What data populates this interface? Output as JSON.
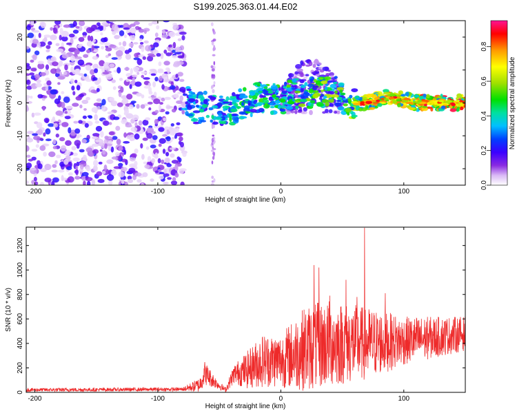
{
  "title": "S199.2025.363.01.44.E02",
  "chart_data": [
    {
      "type": "heatmap",
      "xlabel": "Height of straight line (km)",
      "ylabel": "Frequency (Hz)",
      "xlim": [
        -207,
        150
      ],
      "ylim": [
        -25,
        25
      ],
      "xticks": [
        -200,
        -100,
        0,
        100
      ],
      "yticks": [
        -20,
        -10,
        0,
        10,
        20
      ],
      "colorbar": {
        "label": "Normalized spectral amplitude",
        "range": [
          0,
          0.95
        ],
        "ticks": [
          0.0,
          0.2,
          0.4,
          0.6,
          0.8
        ],
        "tick_labels": [
          "0.0",
          "0.2",
          "0.4",
          "0.6",
          "0.8"
        ],
        "colormap": [
          "#ffffff",
          "#d9b8f5",
          "#8a2be2",
          "#4000ff",
          "#0000ff",
          "#00bfff",
          "#00e5c0",
          "#00e000",
          "#90e000",
          "#ffff00",
          "#ffa500",
          "#ff0000",
          "#ff1493"
        ]
      },
      "regions": [
        {
          "name": "noise",
          "x": [
            -207,
            -78
          ],
          "freq": [
            -25,
            25
          ],
          "level": 0.12
        },
        {
          "name": "gap-streak",
          "x": [
            -56,
            -54
          ],
          "freq": [
            -25,
            25
          ],
          "level": 0.05
        },
        {
          "name": "signal-band",
          "ridge": [
            [
              -78,
              2
            ],
            [
              -70,
              -2
            ],
            [
              -60,
              -1
            ],
            [
              -45,
              -3
            ],
            [
              -30,
              0
            ],
            [
              -15,
              2
            ],
            [
              0,
              1
            ],
            [
              10,
              3
            ],
            [
              30,
              3
            ],
            [
              45,
              4
            ],
            [
              55,
              0
            ],
            [
              70,
              0
            ],
            [
              90,
              2
            ],
            [
              110,
              0
            ],
            [
              150,
              0
            ]
          ],
          "level": 0.45
        },
        {
          "name": "hump",
          "x": [
            0,
            50
          ],
          "freq": [
            -3,
            14
          ],
          "level": 0.2
        }
      ]
    },
    {
      "type": "line",
      "xlabel": "Height of straight line (km)",
      "ylabel": "SNR (10 * v/v)",
      "xlim": [
        -207,
        150
      ],
      "ylim": [
        0,
        1350
      ],
      "xticks": [
        -200,
        -100,
        0,
        100
      ],
      "yticks": [
        0,
        200,
        400,
        600,
        800,
        1000,
        1200
      ],
      "color": "#ee2a2a",
      "envelope": [
        {
          "x": -207,
          "mean": 20,
          "amp": 15
        },
        {
          "x": -80,
          "mean": 25,
          "amp": 15
        },
        {
          "x": -66,
          "mean": 60,
          "amp": 60
        },
        {
          "x": -62,
          "mean": 160,
          "amp": 100
        },
        {
          "x": -52,
          "mean": 70,
          "amp": 40
        },
        {
          "x": -45,
          "mean": 20,
          "amp": 20
        },
        {
          "x": -38,
          "mean": 150,
          "amp": 80
        },
        {
          "x": -28,
          "mean": 180,
          "amp": 150
        },
        {
          "x": -15,
          "mean": 260,
          "amp": 220
        },
        {
          "x": 0,
          "mean": 260,
          "amp": 220
        },
        {
          "x": 20,
          "mean": 360,
          "amp": 350
        },
        {
          "x": 40,
          "mean": 400,
          "amp": 360
        },
        {
          "x": 70,
          "mean": 400,
          "amp": 300
        },
        {
          "x": 100,
          "mean": 420,
          "amp": 200
        },
        {
          "x": 150,
          "mean": 480,
          "amp": 140
        }
      ],
      "peaks": [
        {
          "x": 27,
          "y": 1040
        },
        {
          "x": 31,
          "y": 1020
        },
        {
          "x": 53,
          "y": 920
        },
        {
          "x": 68,
          "y": 1345
        },
        {
          "x": 85,
          "y": 810
        },
        {
          "x": 40,
          "y": 790
        },
        {
          "x": 62,
          "y": 780
        }
      ]
    }
  ]
}
